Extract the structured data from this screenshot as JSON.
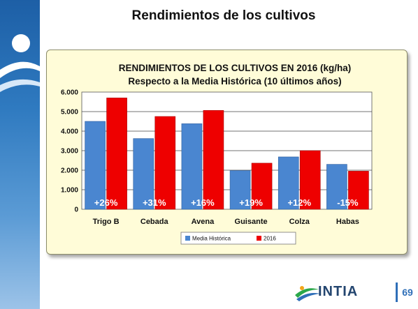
{
  "page": {
    "title": "Rendimientos de los cultivos",
    "page_number": "69",
    "logo_text": "INTIA"
  },
  "colors": {
    "media": "#4a86d0",
    "y2016": "#ee0000",
    "panel_bg": "#fffcd8",
    "band": "#2f7ac0"
  },
  "chart_data": {
    "type": "bar",
    "title": "RENDIMIENTOS  DE LOS CULTIVOS EN 2016 (kg/ha)",
    "subtitle": "Respecto a la Media Histórica (10 últimos años)",
    "categories": [
      "Trigo B",
      "Cebada",
      "Avena",
      "Guisante",
      "Colza",
      "Habas"
    ],
    "series": [
      {
        "name": "Media Histórica",
        "values": [
          4500,
          3620,
          4380,
          1980,
          2680,
          2300
        ]
      },
      {
        "name": "2016",
        "values": [
          5700,
          4750,
          5060,
          2360,
          3000,
          1950
        ]
      }
    ],
    "annotations": [
      "+26%",
      "+31%",
      "+16%",
      "+19%",
      "+12%",
      "-15%"
    ],
    "yticks": [
      "0",
      "1.000",
      "2.000",
      "3.000",
      "4.000",
      "5.000",
      "6.000"
    ],
    "ylim": [
      0,
      6000
    ],
    "grid": true,
    "legend_position": "bottom"
  }
}
